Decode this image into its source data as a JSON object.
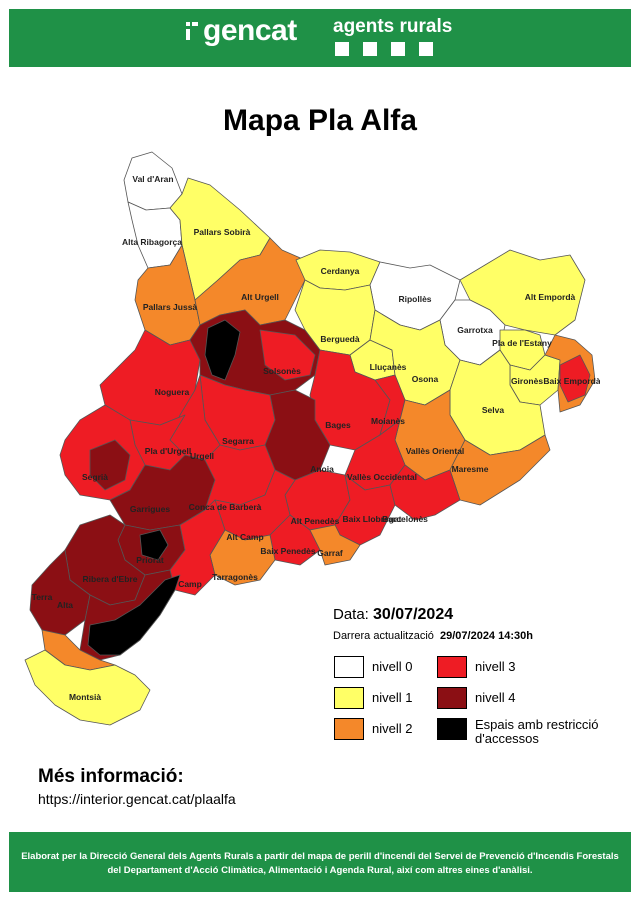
{
  "header": {
    "brand": "gencat",
    "subtitle": "agents rurals",
    "bg_color": "#1f9147"
  },
  "title": "Mapa Pla Alfa",
  "date": {
    "label": "Data:",
    "value": "30/07/2024"
  },
  "updated": {
    "label": "Darrera actualització",
    "value": "29/07/2024 14:30h"
  },
  "levels": {
    "nivell_0": "#ffffff",
    "nivell_1": "#ffff66",
    "nivell_2": "#f4882a",
    "nivell_3": "#ee1c24",
    "nivell_4": "#8b0f14",
    "restriccio": "#000000"
  },
  "legend": [
    {
      "label": "nivell 0",
      "color": "#ffffff"
    },
    {
      "label": "nivell 1",
      "color": "#ffff66"
    },
    {
      "label": "nivell 2",
      "color": "#f4882a"
    },
    {
      "label": "nivell 3",
      "color": "#ee1c24"
    },
    {
      "label": "nivell 4",
      "color": "#8b0f14"
    },
    {
      "label": "Espais amb restricció d'accessos",
      "color": "#000000"
    }
  ],
  "regions": [
    {
      "name": "Val d'Aran",
      "level": "nivell 0"
    },
    {
      "name": "Alta Ribagorça",
      "level": "nivell 0"
    },
    {
      "name": "Pallars Sobirà",
      "level": "nivell 1"
    },
    {
      "name": "Pallars Jussà",
      "level": "nivell 2"
    },
    {
      "name": "Alt Urgell",
      "level": "nivell 2"
    },
    {
      "name": "Cerdanya",
      "level": "nivell 1"
    },
    {
      "name": "Ripollès",
      "level": "nivell 0"
    },
    {
      "name": "Garrotxa",
      "level": "nivell 0"
    },
    {
      "name": "Alt Empordà",
      "level": "nivell 1"
    },
    {
      "name": "Pla de l'Estany",
      "level": "nivell 1"
    },
    {
      "name": "Berguedà",
      "level": "nivell 1"
    },
    {
      "name": "Solsonès",
      "level": "nivell 3"
    },
    {
      "name": "Noguera",
      "level": "nivell 3"
    },
    {
      "name": "Lluçanès",
      "level": "nivell 1"
    },
    {
      "name": "Osona",
      "level": "nivell 1"
    },
    {
      "name": "Gironès",
      "level": "nivell 1"
    },
    {
      "name": "Baix Empordà",
      "level": "nivell 3"
    },
    {
      "name": "Selva",
      "level": "nivell 1"
    },
    {
      "name": "Bages",
      "level": "nivell 3"
    },
    {
      "name": "Moianès",
      "level": "nivell 3"
    },
    {
      "name": "Segarra",
      "level": "nivell 3"
    },
    {
      "name": "Pla d'Urgell",
      "level": "nivell 3"
    },
    {
      "name": "Urgell",
      "level": "nivell 3"
    },
    {
      "name": "Segrià",
      "level": "nivell 3"
    },
    {
      "name": "Anoia",
      "level": "nivell 3"
    },
    {
      "name": "Vallès Oriental",
      "level": "nivell 2"
    },
    {
      "name": "Maresme",
      "level": "nivell 2"
    },
    {
      "name": "Vallès Occidental",
      "level": "nivell 3"
    },
    {
      "name": "Garrigues",
      "level": "nivell 4"
    },
    {
      "name": "Conca de Barberà",
      "level": "nivell 3"
    },
    {
      "name": "Alt Penedès",
      "level": "nivell 3"
    },
    {
      "name": "Baix Llobregat",
      "level": "nivell 3"
    },
    {
      "name": "Barcelonès",
      "level": "nivell 3"
    },
    {
      "name": "Alt Camp",
      "level": "nivell 3"
    },
    {
      "name": "Baix Penedès",
      "level": "nivell 2"
    },
    {
      "name": "Garraf",
      "level": "nivell 2"
    },
    {
      "name": "Priorat",
      "level": "nivell 4"
    },
    {
      "name": "Ribera d'Ebre",
      "level": "nivell 4"
    },
    {
      "name": "Baix Camp",
      "level": "nivell 3"
    },
    {
      "name": "Tarragonès",
      "level": "nivell 2"
    },
    {
      "name": "Terra Alta",
      "level": "nivell 4"
    },
    {
      "name": "Baix Ebre",
      "level": "nivell 4"
    },
    {
      "name": "Montsià",
      "level": "nivell 1"
    }
  ],
  "map_labels": {
    "val_aran": "Val d'Aran",
    "alta_ribagorca": "Alta Ribagorça",
    "pallars_sobira": "Pallars Sobirà",
    "pallars_jussa": "Pallars Jussà",
    "alt_urgell": "Alt Urgell",
    "cerdanya": "Cerdanya",
    "ripolles": "Ripollès",
    "garrotxa": "Garrotxa",
    "alt_emporda": "Alt Empordà",
    "pla_estany": "Pla de l'Estany",
    "bergueda": "Berguedà",
    "solsones": "Solsonès",
    "noguera": "Noguera",
    "llucanes": "Lluçanès",
    "osona": "Osona",
    "girones": "Gironès",
    "baix_emporda": "Baix Empordà",
    "selva": "Selva",
    "bages": "Bages",
    "moianes": "Moianès",
    "segarra": "Segarra",
    "pla_urgell": "Pla d'Urgell",
    "urgell": "Urgell",
    "segria": "Segrià",
    "anoia": "Anoia",
    "valles_oriental": "Vallès Oriental",
    "maresme": "Maresme",
    "valles_occidental": "Vallès Occidental",
    "garrigues": "Garrigues",
    "conca_barbera": "Conca de Barberà",
    "alt_penedes": "Alt Penedès",
    "baix_llobregat": "Baix Llobregat",
    "barcelones": "Barcelonès",
    "alt_camp": "Alt Camp",
    "baix_penedes": "Baix Penedès",
    "garraf": "Garraf",
    "priorat": "Priorat",
    "ribera_ebre": "Ribera d'Ebre",
    "baix_camp": "Camp",
    "tarragones": "Tarragonès",
    "terra_alta_1": "Terra",
    "terra_alta_2": "Alta",
    "montsia": "Montsià"
  },
  "more_info": {
    "title": "Més informació:",
    "url": "https://interior.gencat.cat/plaalfa"
  },
  "footer": {
    "text": "Elaborat per la Direcció General dels Agents Rurals a partir del mapa de perill d'incendi del Servei de Prevenció d'Incendis Forestals del Departament d'Acció Climàtica, Alimentació i Agenda Rural, així com altres eines d'anàlisi."
  }
}
